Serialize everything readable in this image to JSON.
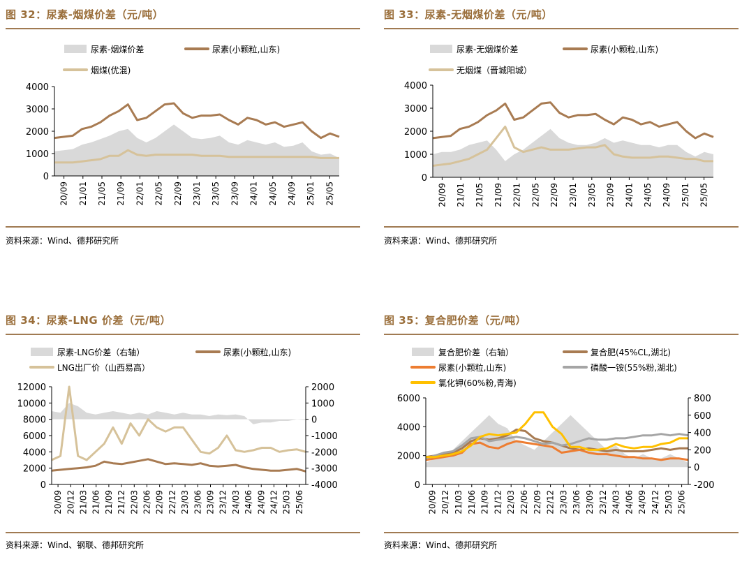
{
  "panels": [
    {
      "title": "图 32：尿素-烟煤价差（元/吨）",
      "source": "资料来源：Wind、德邦研究所",
      "chart_data": {
        "type": "line",
        "dual_axis": false,
        "title": "",
        "x_tick_labels": [
          "20/09",
          "21/01",
          "21/05",
          "21/09",
          "22/01",
          "22/05",
          "22/09",
          "23/01",
          "23/05",
          "23/09",
          "24/01",
          "24/05",
          "24/09",
          "25/01",
          "25/05"
        ],
        "ylim": [
          0,
          4000
        ],
        "yticks": [
          0,
          1000,
          2000,
          3000,
          4000
        ],
        "legend_position": "top",
        "legend": [
          "尿素-烟煤价差",
          "尿素(小颗粒,山东)",
          "烟煤(优混)"
        ],
        "series": [
          {
            "name": "尿素-烟煤价差",
            "kind": "area",
            "color": "#d9d9d9",
            "axis": "left",
            "values": [
              1100,
              1150,
              1200,
              1400,
              1500,
              1650,
              1800,
              2000,
              2100,
              1700,
              1500,
              1700,
              2000,
              2300,
              2000,
              1700,
              1650,
              1700,
              1800,
              1500,
              1400,
              1600,
              1500,
              1400,
              1500,
              1300,
              1350,
              1500,
              1100,
              950,
              1000,
              800
            ]
          },
          {
            "name": "尿素(小颗粒,山东)",
            "kind": "line",
            "color": "#a87b52",
            "axis": "left",
            "values": [
              1700,
              1750,
              1800,
              2100,
              2200,
              2400,
              2700,
              2900,
              3200,
              2500,
              2600,
              2900,
              3200,
              3250,
              2800,
              2600,
              2700,
              2700,
              2750,
              2500,
              2300,
              2600,
              2500,
              2300,
              2400,
              2200,
              2300,
              2400,
              2000,
              1700,
              1900,
              1750
            ]
          },
          {
            "name": "烟煤(优混)",
            "kind": "line",
            "color": "#d6c29a",
            "axis": "left",
            "values": [
              600,
              600,
              600,
              650,
              700,
              750,
              900,
              900,
              1150,
              950,
              900,
              950,
              950,
              950,
              950,
              950,
              900,
              900,
              900,
              850,
              850,
              850,
              850,
              850,
              850,
              850,
              850,
              850,
              850,
              800,
              800,
              800
            ]
          }
        ]
      }
    },
    {
      "title": "图 33：尿素-无烟煤价差（元/吨）",
      "source": "资料来源：Wind、德邦研究所",
      "chart_data": {
        "type": "line",
        "dual_axis": false,
        "title": "",
        "x_tick_labels": [
          "20/09",
          "21/01",
          "21/05",
          "21/09",
          "22/01",
          "22/05",
          "22/09",
          "23/01",
          "23/05",
          "23/09",
          "24/01",
          "24/05",
          "24/09",
          "25/01",
          "25/05"
        ],
        "ylim": [
          0,
          4000
        ],
        "yticks": [
          0,
          1000,
          2000,
          3000,
          4000
        ],
        "legend_position": "top",
        "legend": [
          "尿素-无烟煤价差",
          "尿素(小颗粒,山东)",
          "无烟煤（晋城阳城）"
        ],
        "series": [
          {
            "name": "尿素-无烟煤价差",
            "kind": "area",
            "color": "#d9d9d9",
            "axis": "left",
            "values": [
              1000,
              1100,
              1100,
              1200,
              1400,
              1500,
              1600,
              1200,
              700,
              1000,
              1200,
              1500,
              1800,
              2100,
              1700,
              1500,
              1400,
              1400,
              1500,
              1700,
              1500,
              1600,
              1500,
              1400,
              1400,
              1300,
              1400,
              1400,
              1100,
              900,
              1100,
              1000
            ]
          },
          {
            "name": "尿素(小颗粒,山东)",
            "kind": "line",
            "color": "#a87b52",
            "axis": "left",
            "values": [
              1700,
              1750,
              1800,
              2100,
              2200,
              2400,
              2700,
              2900,
              3200,
              2500,
              2600,
              2900,
              3200,
              3250,
              2800,
              2600,
              2700,
              2700,
              2750,
              2500,
              2300,
              2600,
              2500,
              2300,
              2400,
              2200,
              2300,
              2400,
              2000,
              1700,
              1900,
              1750
            ]
          },
          {
            "name": "无烟煤（晋城阳城）",
            "kind": "line",
            "color": "#d6c29a",
            "axis": "left",
            "values": [
              500,
              550,
              600,
              700,
              800,
              1000,
              1200,
              1700,
              2200,
              1300,
              1100,
              1200,
              1300,
              1200,
              1200,
              1200,
              1250,
              1300,
              1300,
              1400,
              1000,
              900,
              850,
              850,
              850,
              900,
              900,
              850,
              800,
              800,
              700,
              700
            ]
          }
        ]
      }
    },
    {
      "title": "图 34：尿素-LNG 价差（元/吨）",
      "source": "资料来源：Wind、钢联、德邦研究所",
      "chart_data": {
        "type": "line",
        "dual_axis": true,
        "title": "",
        "x_tick_labels": [
          "20/09",
          "20/12",
          "21/03",
          "21/06",
          "21/09",
          "21/12",
          "22/03",
          "22/06",
          "22/09",
          "22/12",
          "23/03",
          "23/06",
          "23/09",
          "23/12",
          "24/03",
          "24/06",
          "24/09",
          "24/12",
          "25/03",
          "25/06"
        ],
        "ylim": [
          0,
          12000
        ],
        "yticks": [
          0,
          2000,
          4000,
          6000,
          8000,
          10000,
          12000
        ],
        "y2lim": [
          -4000,
          2000
        ],
        "y2ticks": [
          -4000,
          -3000,
          -2000,
          -1000,
          0,
          1000,
          2000
        ],
        "legend_position": "top",
        "legend": [
          "尿素-LNG价差（右轴）",
          "尿素(小颗粒,山东)",
          "LNG出厂价（山西易高）"
        ],
        "series": [
          {
            "name": "尿素-LNG价差（右轴）",
            "kind": "area",
            "color": "#d9d9d9",
            "axis": "right",
            "values": [
              500,
              400,
              1000,
              800,
              400,
              300,
              400,
              500,
              400,
              300,
              400,
              300,
              500,
              400,
              300,
              400,
              300,
              300,
              200,
              300,
              250,
              300,
              200,
              -300,
              -200,
              -200,
              -100,
              -100,
              0,
              -50
            ]
          },
          {
            "name": "尿素(小颗粒,山东)",
            "kind": "line",
            "color": "#a87b52",
            "axis": "left",
            "values": [
              1700,
              1800,
              1900,
              2000,
              2100,
              2300,
              2800,
              2600,
              2500,
              2700,
              2900,
              3100,
              2800,
              2500,
              2600,
              2500,
              2400,
              2600,
              2300,
              2200,
              2300,
              2400,
              2100,
              1900,
              1800,
              1700,
              1700,
              1800,
              1900,
              1600
            ]
          },
          {
            "name": "LNG出厂价（山西易高）",
            "kind": "line",
            "color": "#d6c29a",
            "axis": "left",
            "values": [
              3000,
              3500,
              12000,
              3500,
              3000,
              4000,
              5000,
              7000,
              5000,
              7500,
              6000,
              8000,
              7000,
              6500,
              7000,
              7000,
              5500,
              4000,
              3800,
              4500,
              6000,
              4200,
              4000,
              4200,
              4500,
              4500,
              4000,
              4200,
              4300,
              4000
            ]
          }
        ]
      }
    },
    {
      "title": "图 35：复合肥价差（元/吨）",
      "source": "资料来源：Wind、德邦研究所",
      "chart_data": {
        "type": "line",
        "dual_axis": true,
        "title": "",
        "x_tick_labels": [
          "20/09",
          "20/12",
          "21/03",
          "21/06",
          "21/09",
          "21/12",
          "22/03",
          "22/06",
          "22/09",
          "22/12",
          "23/03",
          "23/06",
          "23/09",
          "23/12",
          "24/03",
          "24/06",
          "24/09",
          "24/12",
          "25/03",
          "25/06"
        ],
        "ylim": [
          0,
          6000
        ],
        "yticks": [
          0,
          2000,
          4000,
          6000
        ],
        "y2lim": [
          -200,
          800
        ],
        "y2ticks": [
          -200,
          0,
          200,
          400,
          600,
          800
        ],
        "legend_position": "top",
        "legend": [
          "复合肥价差（右轴）",
          "复合肥(45%CL,湖北)",
          "尿素(小颗粒,山东)",
          "磷酸一铵(55%粉,湖北)",
          "氯化钾(60%粉,青海)"
        ],
        "series": [
          {
            "name": "复合肥价差（右轴）",
            "kind": "area",
            "color": "#d9d9d9",
            "axis": "right",
            "values": [
              50,
              100,
              150,
              200,
              300,
              400,
              500,
              600,
              500,
              450,
              300,
              250,
              200,
              300,
              400,
              500,
              600,
              500,
              400,
              300,
              200,
              250,
              150,
              100,
              150,
              100,
              100,
              150,
              100,
              50
            ]
          },
          {
            "name": "复合肥(45%CL,湖北)",
            "kind": "line",
            "color": "#a87b52",
            "axis": "left",
            "values": [
              1900,
              2000,
              2100,
              2200,
              2500,
              3000,
              3200,
              3100,
              3200,
              3400,
              3800,
              3700,
              3200,
              3000,
              2900,
              2700,
              2500,
              2400,
              2500,
              2400,
              2300,
              2400,
              2300,
              2300,
              2300,
              2400,
              2500,
              2400,
              2500,
              2500
            ]
          },
          {
            "name": "尿素(小颗粒,山东)",
            "kind": "line",
            "color": "#ed7d31",
            "axis": "left",
            "values": [
              1700,
              1800,
              1900,
              2000,
              2200,
              2800,
              2900,
              2600,
              2500,
              2800,
              3000,
              2900,
              2800,
              2700,
              2600,
              2200,
              2300,
              2400,
              2200,
              2100,
              2100,
              2000,
              1900,
              1900,
              1800,
              1800,
              1700,
              1800,
              1800,
              1700
            ]
          },
          {
            "name": "磷酸一铵(55%粉,湖北)",
            "kind": "line",
            "color": "#a5a5a5",
            "axis": "left",
            "values": [
              1800,
              2000,
              2200,
              2300,
              2700,
              3200,
              3300,
              3000,
              3100,
              3200,
              3300,
              3200,
              3000,
              2800,
              2900,
              2700,
              2800,
              3000,
              3200,
              3100,
              3100,
              3200,
              3200,
              3300,
              3400,
              3400,
              3500,
              3400,
              3500,
              3400
            ]
          },
          {
            "name": "氯化钾(60%粉,青海)",
            "kind": "line",
            "color": "#ffc000",
            "axis": "left",
            "values": [
              1900,
              1900,
              2000,
              2100,
              2300,
              2700,
              3300,
              3500,
              3400,
              3500,
              3600,
              4200,
              5000,
              5000,
              4000,
              3500,
              2600,
              2600,
              2400,
              2400,
              2500,
              2800,
              2600,
              2500,
              2600,
              2600,
              2800,
              2900,
              3200,
              3200
            ]
          }
        ]
      }
    }
  ]
}
